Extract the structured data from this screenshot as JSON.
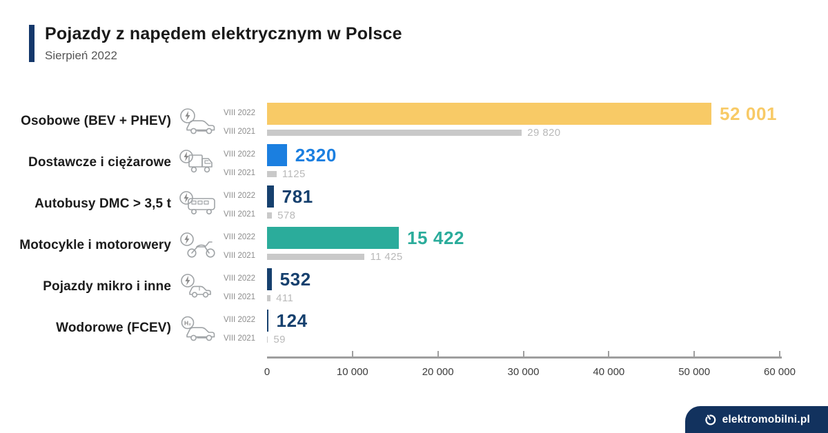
{
  "header": {
    "title": "Pojazdy z napędem elektrycznym w Polsce",
    "subtitle": "Sierpień 2022"
  },
  "colors": {
    "accent_navy": "#14386B",
    "yellow": "#F8CA66",
    "blue": "#1B7FE0",
    "teal": "#2BAC9B",
    "navy": "#16406E",
    "gray_bar": "#C9C9C9",
    "gray_value_text": "#B9B9B9",
    "period_label_gray": "#8C8C8C",
    "axis_gray": "#9E9E9E",
    "badge_navy": "#12325E"
  },
  "chart_data": {
    "type": "bar",
    "orientation": "horizontal",
    "title": "Pojazdy z napędem elektrycznym w Polsce",
    "subtitle": "Sierpień 2022",
    "series_labels": [
      "VIII 2022",
      "VIII 2021"
    ],
    "xlim": [
      0,
      60000
    ],
    "x_ticks": [
      "0",
      "10 000",
      "20 000",
      "30 000",
      "40 000",
      "50 000",
      "60 000"
    ],
    "x_tick_values": [
      0,
      10000,
      20000,
      30000,
      40000,
      50000,
      60000
    ],
    "grid": false,
    "rows": [
      {
        "category": "Osobowe (BEV + PHEV)",
        "icon": "ev-car-icon",
        "value_2022": 52001,
        "label_2022": "52 001",
        "value_2021": 29820,
        "label_2021": "29 820",
        "color": "#F8CA66"
      },
      {
        "category": "Dostawcze i ciężarowe",
        "icon": "ev-truck-icon",
        "value_2022": 2320,
        "label_2022": "2320",
        "value_2021": 1125,
        "label_2021": "1125",
        "color": "#1B7FE0"
      },
      {
        "category": "Autobusy DMC > 3,5 t",
        "icon": "ev-bus-icon",
        "value_2022": 781,
        "label_2022": "781",
        "value_2021": 578,
        "label_2021": "578",
        "color": "#16406E"
      },
      {
        "category": "Motocykle i motorowery",
        "icon": "ev-motorcycle-icon",
        "value_2022": 15422,
        "label_2022": "15 422",
        "value_2021": 11425,
        "label_2021": "11 425",
        "color": "#2BAC9B"
      },
      {
        "category": "Pojazdy mikro i inne",
        "icon": "ev-micro-icon",
        "value_2022": 532,
        "label_2022": "532",
        "value_2021": 411,
        "label_2021": "411",
        "color": "#16406E"
      },
      {
        "category": "Wodorowe (FCEV)",
        "icon": "h2-car-icon",
        "value_2022": 124,
        "label_2022": "124",
        "value_2021": 59,
        "label_2021": "59",
        "color": "#16406E"
      }
    ]
  },
  "footer": {
    "brand": "elektromobilni.pl",
    "brand_icon": "power-icon"
  }
}
